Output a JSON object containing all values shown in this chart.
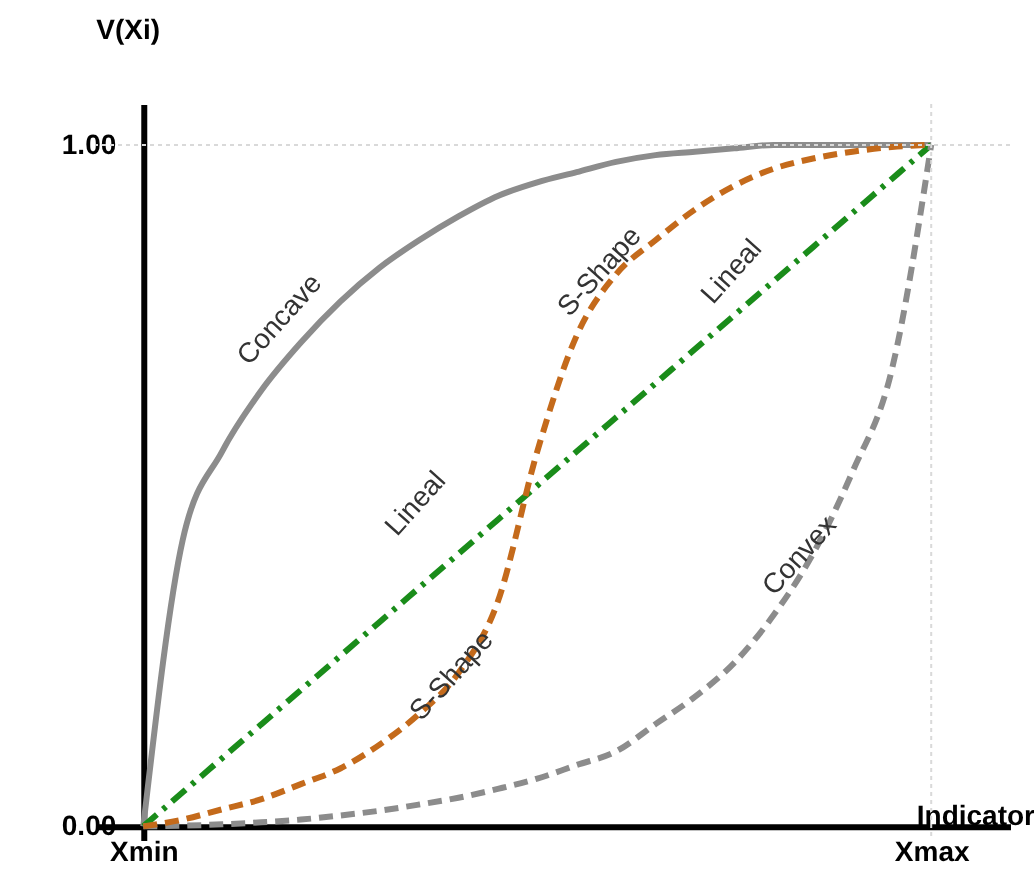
{
  "chart_data": {
    "type": "line",
    "xlabel": "Indicator",
    "ylabel": "V(Xi)",
    "categories": [
      "Xmin",
      null,
      null,
      null,
      null,
      null,
      null,
      null,
      null,
      null,
      null,
      null,
      null,
      null,
      null,
      null,
      null,
      null,
      null,
      null,
      "Xmax"
    ],
    "ylim": [
      -0.02,
      1.06
    ],
    "yticks": [
      {
        "value": 0,
        "label": "0.00"
      },
      {
        "value": 1,
        "label": "1.00"
      }
    ],
    "series": [
      {
        "color": "#8c8c8c",
        "line_style": "solid",
        "values": [
          0,
          0.42,
          0.55,
          0.64,
          0.71,
          0.77,
          0.82,
          0.86,
          0.895,
          0.925,
          0.945,
          0.96,
          0.975,
          0.985,
          0.99,
          0.995,
          1,
          1,
          1,
          1,
          1
        ]
      },
      {
        "color": "#c46a1b",
        "line_style": "dashed",
        "values": [
          0,
          0.01,
          0.025,
          0.04,
          0.062,
          0.085,
          0.12,
          0.165,
          0.225,
          0.33,
          0.55,
          0.72,
          0.81,
          0.86,
          0.905,
          0.94,
          0.965,
          0.98,
          0.99,
          0.997,
          1
        ]
      },
      {
        "color": "#1a8c1a",
        "line_style": "dashdot",
        "values": [
          0,
          0.05,
          0.1,
          0.15,
          0.2,
          0.25,
          0.3,
          0.35,
          0.4,
          0.45,
          0.5,
          0.55,
          0.6,
          0.65,
          0.7,
          0.75,
          0.8,
          0.85,
          0.9,
          0.95,
          1
        ]
      },
      {
        "color": "#8c8c8c",
        "line_style": "dashed",
        "values": [
          0,
          0.001,
          0.003,
          0.006,
          0.01,
          0.016,
          0.023,
          0.032,
          0.042,
          0.055,
          0.07,
          0.09,
          0.11,
          0.15,
          0.19,
          0.24,
          0.31,
          0.4,
          0.52,
          0.67,
          1
        ]
      }
    ],
    "ref_lines": [
      {
        "axis": "y",
        "value": 1,
        "color": "#d9d9d9",
        "line_style": "dotted"
      },
      {
        "axis": "x",
        "value": "Xmax",
        "color": "#d9d9d9",
        "line_style": "dotted"
      }
    ],
    "annotations": [
      "Concave",
      "S-Shape",
      "Lineal",
      "Lineal",
      "S-Shape",
      "Convex"
    ]
  }
}
